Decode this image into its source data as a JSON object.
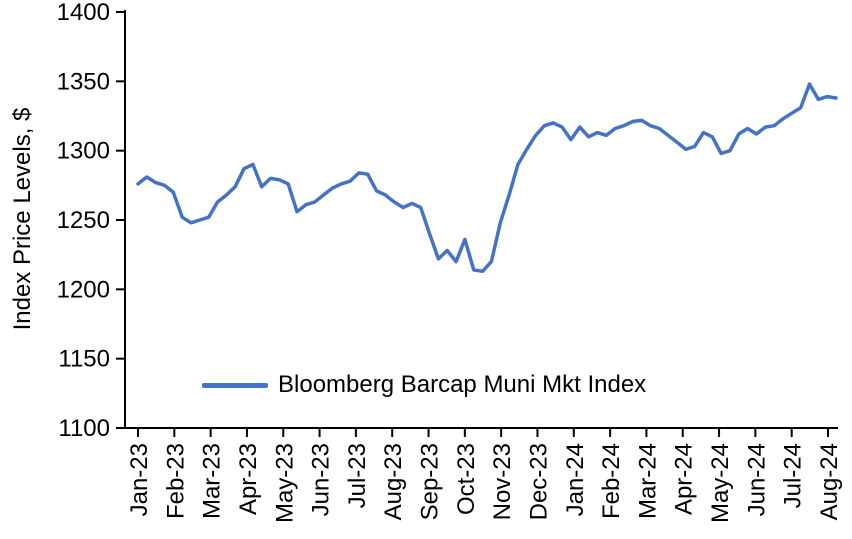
{
  "chart_data": {
    "type": "line",
    "title": "",
    "xlabel": "",
    "ylabel": "Index Price Levels, $",
    "ylim": [
      1100,
      1400
    ],
    "yticks": [
      1100,
      1150,
      1200,
      1250,
      1300,
      1350,
      1400
    ],
    "categories": [
      "Jan-23",
      "Feb-23",
      "Mar-23",
      "Apr-23",
      "May-23",
      "Jun-23",
      "Jul-23",
      "Aug-23",
      "Sep-23",
      "Oct-23",
      "Nov-23",
      "Dec-23",
      "Jan-24",
      "Feb-24",
      "Mar-24",
      "Apr-24",
      "May-24",
      "Jun-24",
      "Jul-24",
      "Aug-24"
    ],
    "grid": false,
    "legend_position": "inside-bottom-left",
    "series": [
      {
        "name": "Bloomberg Barcap Muni Mkt Index",
        "color": "#4472C4",
        "values": [
          1276,
          1281,
          1277,
          1275,
          1270,
          1252,
          1248,
          1250,
          1252,
          1263,
          1268,
          1274,
          1287,
          1290,
          1274,
          1280,
          1279,
          1276,
          1256,
          1261,
          1263,
          1268,
          1273,
          1276,
          1278,
          1284,
          1283,
          1271,
          1268,
          1263,
          1259,
          1262,
          1259,
          1240,
          1222,
          1228,
          1220,
          1236,
          1214,
          1213,
          1220,
          1248,
          1268,
          1290,
          1301,
          1311,
          1318,
          1320,
          1317,
          1308,
          1317,
          1310,
          1313,
          1311,
          1316,
          1318,
          1321,
          1322,
          1318,
          1316,
          1311,
          1306,
          1301,
          1303,
          1313,
          1310,
          1298,
          1300,
          1312,
          1316,
          1312,
          1317,
          1318,
          1323,
          1327,
          1331,
          1348,
          1337,
          1339,
          1338
        ]
      }
    ]
  },
  "colors": {
    "line": "#4472C4",
    "axis": "#000000",
    "background": "#FFFFFF",
    "text": "#000000"
  }
}
